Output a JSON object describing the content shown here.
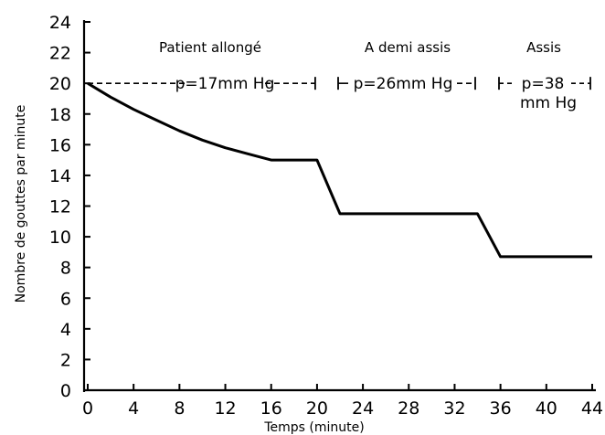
{
  "chart_data": {
    "type": "line",
    "xlabel": "Temps (minute)",
    "ylabel": "Nombre de gouttes par minute",
    "xlim": [
      0,
      44
    ],
    "ylim": [
      0,
      24
    ],
    "x_ticks": [
      0,
      4,
      8,
      12,
      16,
      20,
      24,
      28,
      32,
      36,
      40,
      44
    ],
    "y_ticks": [
      0,
      2,
      4,
      6,
      8,
      10,
      12,
      14,
      16,
      18,
      20,
      22,
      24
    ],
    "grid": false,
    "series": [
      {
        "x": [
          0,
          2,
          4,
          6,
          8,
          10,
          12,
          14,
          16,
          18,
          20,
          22,
          24,
          26,
          28,
          30,
          32,
          34,
          36,
          38,
          40,
          42,
          44
        ],
        "y": [
          20,
          19.1,
          18.3,
          17.6,
          16.9,
          16.3,
          15.8,
          15.4,
          15.0,
          15.0,
          15.0,
          11.5,
          11.5,
          11.5,
          11.5,
          11.5,
          11.5,
          11.5,
          8.7,
          8.7,
          8.7,
          8.7,
          8.7
        ],
        "color": "#000000"
      }
    ],
    "phases": [
      {
        "label": "Patient allongé",
        "pressure": "p=17mm Hg",
        "x_range": [
          0,
          20
        ]
      },
      {
        "label": "A demi assis",
        "pressure": "p=26mm Hg",
        "x_range": [
          20,
          34
        ]
      },
      {
        "label": "Assis",
        "pressure": "p=38",
        "pressure_unit": "mm Hg",
        "x_range": [
          36,
          44
        ]
      }
    ]
  }
}
